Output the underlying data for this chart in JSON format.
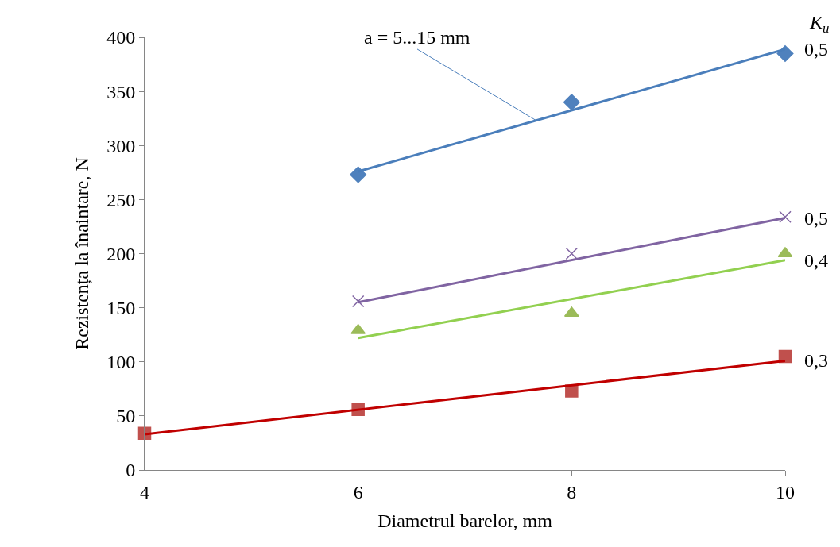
{
  "chart_data": {
    "type": "scatter",
    "xlabel": "Diametrul barelor, mm",
    "ylabel": "Rezistența la înaintare, N",
    "xlim": [
      4,
      10
    ],
    "xticks": [
      4,
      6,
      8,
      10
    ],
    "ylim": [
      0,
      400
    ],
    "yticks": [
      0,
      50,
      100,
      150,
      200,
      250,
      300,
      350,
      400
    ],
    "series": [
      {
        "marker": "diamond",
        "color": "#4f81bd",
        "x": [
          6,
          8,
          10
        ],
        "values": [
          273,
          340,
          385
        ]
      },
      {
        "type": "line",
        "name": "0,5",
        "color": "#4a7ebb",
        "x": [
          6,
          10
        ],
        "values": [
          276,
          389
        ]
      },
      {
        "marker": "cross",
        "color": "#8064a2",
        "x": [
          6,
          8,
          10
        ],
        "values": [
          156,
          200,
          234
        ]
      },
      {
        "type": "line",
        "name": "0,5",
        "color": "#8064a2",
        "x": [
          6,
          10
        ],
        "values": [
          155,
          233
        ]
      },
      {
        "marker": "triangle",
        "color": "#9bbb59",
        "x": [
          6,
          8,
          10
        ],
        "values": [
          129,
          145,
          200
        ]
      },
      {
        "type": "line",
        "name": "0,4",
        "color": "#92d050",
        "x": [
          6,
          10
        ],
        "values": [
          122,
          194
        ]
      },
      {
        "marker": "square",
        "color": "#c0504d",
        "x": [
          4,
          6,
          8,
          10
        ],
        "values": [
          34,
          56,
          73,
          105
        ]
      },
      {
        "type": "line",
        "name": "0,3",
        "color": "#c00000",
        "x": [
          4,
          10
        ],
        "values": [
          33,
          101
        ]
      }
    ],
    "annotations": [
      {
        "text": "a = 5...15 mm",
        "x": 7.67,
        "y": 323
      },
      "K$_{u}$"
    ]
  }
}
